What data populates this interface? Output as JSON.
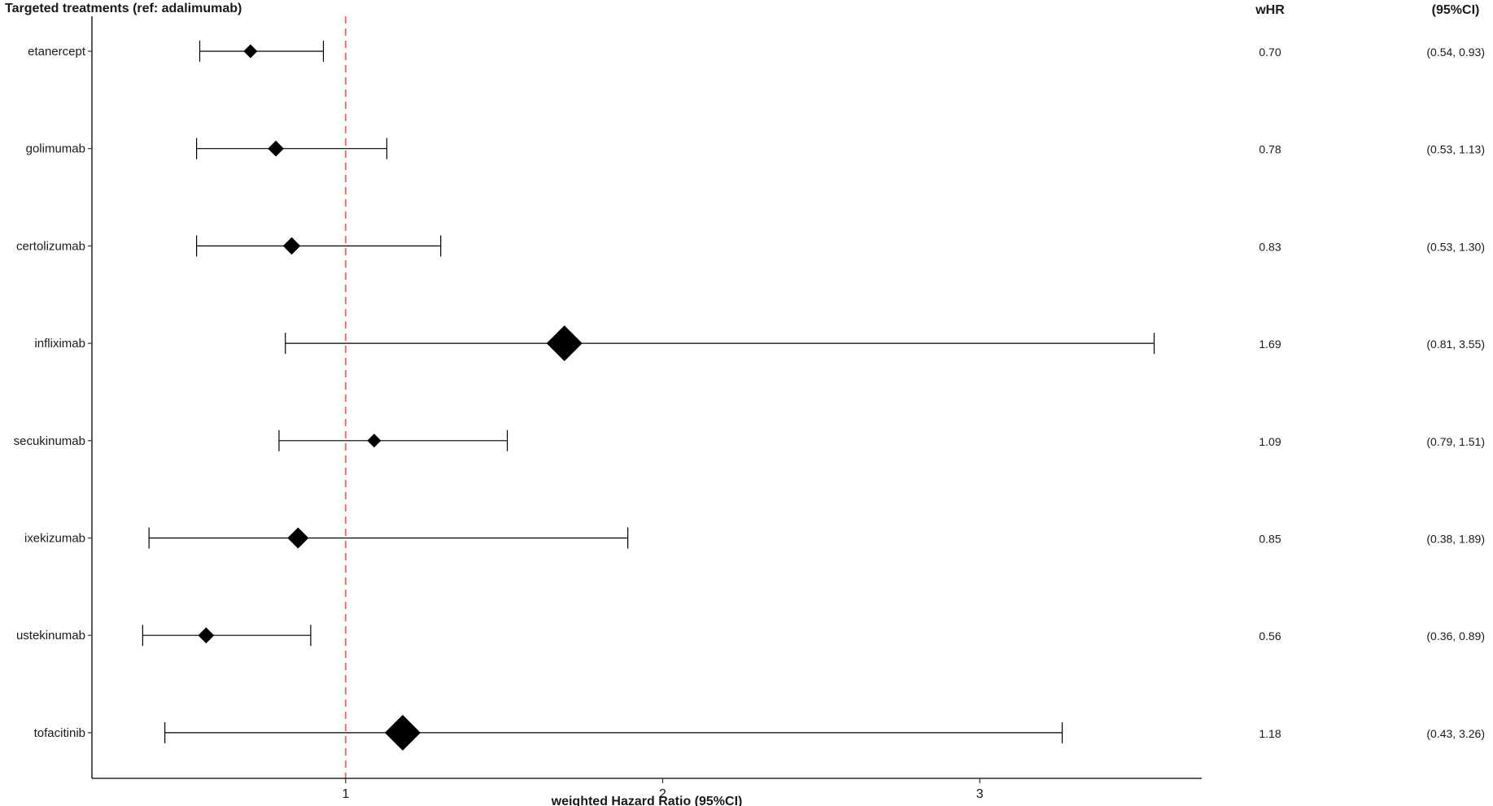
{
  "chart_data": {
    "type": "forest",
    "title": "Targeted treatments (ref: adalimumab)",
    "xlabel": "weighted Hazard Ratio (95%CI)",
    "xlim": [
      0.2,
      3.7
    ],
    "xticks": [
      "1",
      "2",
      "3"
    ],
    "reference_line": 1,
    "column_headers": {
      "whr": "wHR",
      "ci": "(95%CI)"
    },
    "colors": {
      "reference": "#e8706a",
      "marks": "#000000"
    },
    "rows": [
      {
        "label": "etanercept",
        "hr": 0.7,
        "lo": 0.54,
        "hi": 0.93,
        "weight": 1.0,
        "hr_text": "0.70",
        "ci_text": "(0.54, 0.93)"
      },
      {
        "label": "golimumab",
        "hr": 0.78,
        "lo": 0.53,
        "hi": 1.13,
        "weight": 1.3,
        "hr_text": "0.78",
        "ci_text": "(0.53, 1.13)"
      },
      {
        "label": "certolizumab",
        "hr": 0.83,
        "lo": 0.53,
        "hi": 1.3,
        "weight": 1.5,
        "hr_text": "0.83",
        "ci_text": "(0.53, 1.30)"
      },
      {
        "label": "infliximab",
        "hr": 1.69,
        "lo": 0.81,
        "hi": 3.55,
        "weight": 4.0,
        "hr_text": "1.69",
        "ci_text": "(0.81, 3.55)"
      },
      {
        "label": "secukinumab",
        "hr": 1.09,
        "lo": 0.79,
        "hi": 1.51,
        "weight": 1.0,
        "hr_text": "1.09",
        "ci_text": "(0.79, 1.51)"
      },
      {
        "label": "ixekizumab",
        "hr": 0.85,
        "lo": 0.38,
        "hi": 1.89,
        "weight": 2.0,
        "hr_text": "0.85",
        "ci_text": "(0.38, 1.89)"
      },
      {
        "label": "ustekinumab",
        "hr": 0.56,
        "lo": 0.36,
        "hi": 0.89,
        "weight": 1.3,
        "hr_text": "0.56",
        "ci_text": "(0.36, 0.89)"
      },
      {
        "label": "tofacitinib",
        "hr": 1.18,
        "lo": 0.43,
        "hi": 3.26,
        "weight": 4.0,
        "hr_text": "1.18",
        "ci_text": "(0.43, 3.26)"
      }
    ]
  }
}
